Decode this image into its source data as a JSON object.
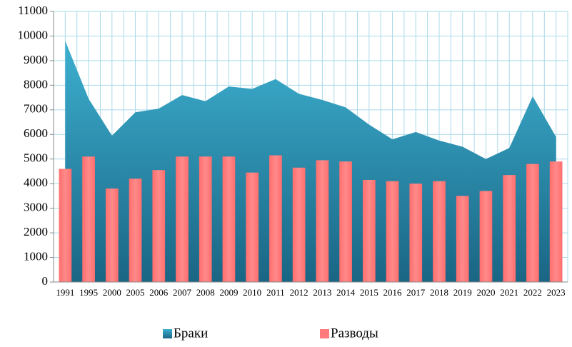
{
  "chart_data": {
    "type": "combo",
    "categories": [
      "1991",
      "1995",
      "2000",
      "2005",
      "2006",
      "2007",
      "2008",
      "2009",
      "2010",
      "2011",
      "2012",
      "2013",
      "2014",
      "2015",
      "2016",
      "2017",
      "2018",
      "2019",
      "2020",
      "2021",
      "2022",
      "2023"
    ],
    "series": [
      {
        "name": "Браки",
        "type": "area",
        "color": "#2b94b8",
        "values": [
          9800,
          7450,
          5950,
          6900,
          7050,
          7600,
          7350,
          7950,
          7850,
          8250,
          7650,
          7400,
          7100,
          6400,
          5800,
          6100,
          5750,
          5500,
          5000,
          5450,
          7550,
          5900
        ]
      },
      {
        "name": "Разводы",
        "type": "bar",
        "color": "#ff7b7b",
        "values": [
          4600,
          5100,
          3800,
          4200,
          4550,
          5100,
          5100,
          5100,
          4450,
          5150,
          4650,
          4950,
          4900,
          4150,
          4100,
          4000,
          4100,
          3500,
          3700,
          4350,
          4800,
          4900
        ]
      }
    ],
    "ylim": [
      0,
      11000
    ],
    "yticks": [
      0,
      1000,
      2000,
      3000,
      4000,
      5000,
      6000,
      7000,
      8000,
      9000,
      10000,
      11000
    ],
    "grid": true,
    "legend": "bottom"
  }
}
